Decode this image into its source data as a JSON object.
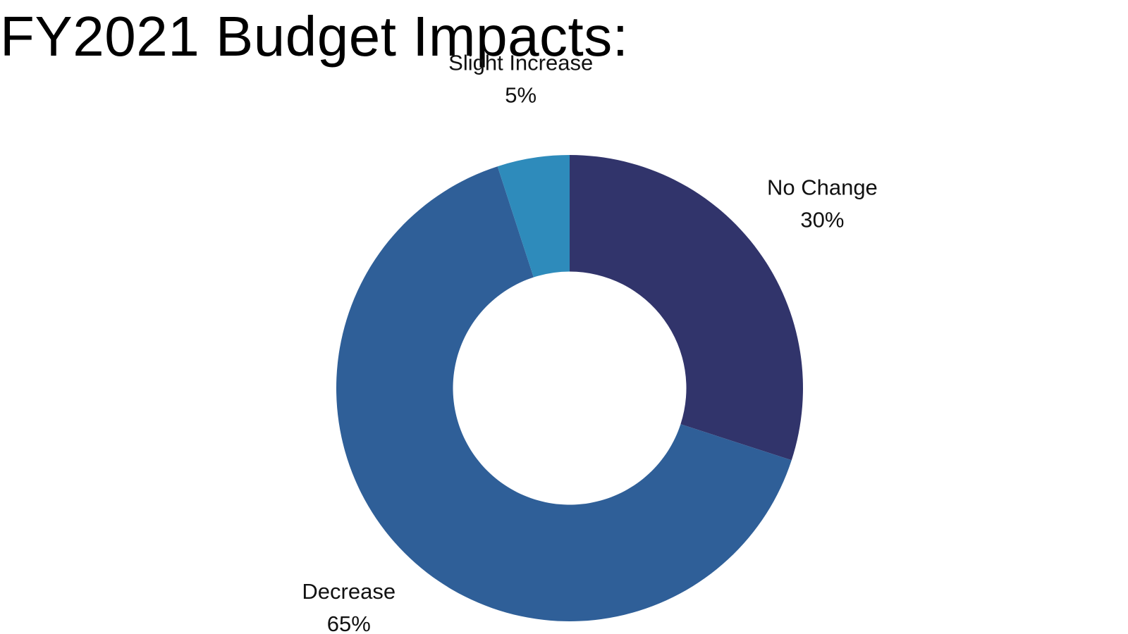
{
  "slide": {
    "title": "FY2021 Budget Impacts:"
  },
  "chart_data": {
    "type": "pie",
    "variant": "donut",
    "title": "FY2021 Budget Impacts:",
    "start_angle_deg": 0,
    "direction": "clockwise",
    "hole_ratio": 0.5,
    "categories": [
      "No Change",
      "Decrease",
      "Slight Increase"
    ],
    "values": [
      30,
      65,
      5
    ],
    "value_labels": [
      "30%",
      "65%",
      "5%"
    ],
    "colors": [
      "#31346B",
      "#2F5F98",
      "#2E8BBB"
    ],
    "data_labels": "outside, category name and percentage"
  }
}
